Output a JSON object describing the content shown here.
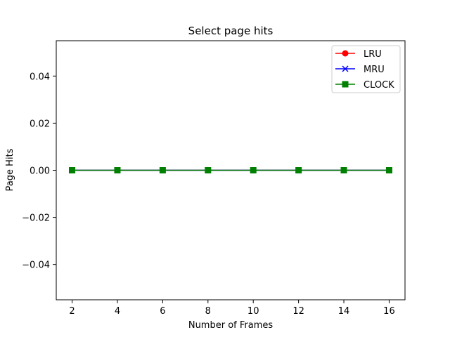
{
  "chart_data": {
    "type": "line",
    "title": "Select page hits",
    "xlabel": "Number of Frames",
    "ylabel": "Page Hits",
    "x": [
      2,
      4,
      6,
      8,
      10,
      12,
      14,
      16
    ],
    "xlim": [
      1.3,
      16.7
    ],
    "ylim": [
      -0.055,
      0.055
    ],
    "xticks": [
      2,
      4,
      6,
      8,
      10,
      12,
      14,
      16
    ],
    "xtick_labels": [
      "2",
      "4",
      "6",
      "8",
      "10",
      "12",
      "14",
      "16"
    ],
    "yticks": [
      -0.04,
      -0.02,
      0.0,
      0.02,
      0.04
    ],
    "ytick_labels": [
      "−0.04",
      "−0.02",
      "0.00",
      "0.02",
      "0.04"
    ],
    "grid": false,
    "legend_position": "top-right",
    "series": [
      {
        "name": "LRU",
        "values": [
          0,
          0,
          0,
          0,
          0,
          0,
          0,
          0
        ],
        "color": "#ff0000",
        "marker": "circle"
      },
      {
        "name": "MRU",
        "values": [
          0,
          0,
          0,
          0,
          0,
          0,
          0,
          0
        ],
        "color": "#0000ff",
        "marker": "x"
      },
      {
        "name": "CLOCK",
        "values": [
          0,
          0,
          0,
          0,
          0,
          0,
          0,
          0
        ],
        "color": "#008000",
        "marker": "square"
      }
    ]
  }
}
